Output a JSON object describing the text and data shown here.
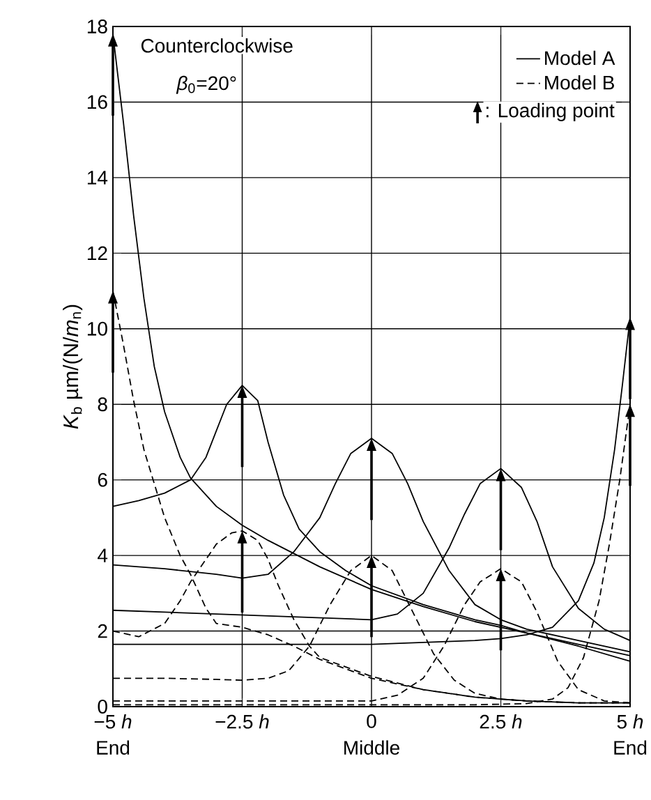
{
  "chart_data": {
    "type": "line",
    "xlim": [
      -5,
      5
    ],
    "ylim": [
      0,
      18
    ],
    "xticks": [
      {
        "value": -5,
        "label": "−5 *h*"
      },
      {
        "value": -2.5,
        "label": "−2.5 *h*"
      },
      0,
      {
        "value": 2.5,
        "label": "2.5 *h*"
      },
      {
        "value": 5,
        "label": "5 *h*"
      }
    ],
    "yticks": [
      0,
      2,
      4,
      6,
      8,
      10,
      12,
      14,
      16,
      18
    ],
    "ylabel": "*K*$_{b}$ µm/(N/*m*$_{n}$)",
    "grid": true,
    "legend": "top right",
    "annotations": [
      "Counterclockwise",
      "*β*$_{0}$=20°",
      ": Loading point",
      "End",
      "Middle",
      "End"
    ],
    "series": [
      {
        "name": "Model A",
        "color": "#000000",
        "line_style": "solid",
        "x": [
          -5,
          -4.8,
          -4.6,
          -4.4,
          -4.2,
          -4,
          -3.7,
          -3.5,
          -3,
          -2.5,
          -2,
          -1,
          0,
          1,
          2,
          2.5,
          3,
          4,
          5
        ],
        "values": [
          17.8,
          15.5,
          13,
          10.8,
          9,
          7.8,
          6.6,
          6.05,
          5.3,
          4.8,
          4.4,
          3.7,
          3.1,
          2.65,
          2.25,
          2.1,
          1.95,
          1.6,
          1.2
        ]
      },
      {
        "color": "#000000",
        "line_style": "solid",
        "x": [
          -5,
          -4.5,
          -4,
          -3.5,
          -3.2,
          -3,
          -2.8,
          -2.5,
          -2.2,
          -2,
          -1.7,
          -1.4,
          -1,
          -0.5,
          0,
          1,
          2,
          2.5,
          3,
          4,
          5
        ],
        "values": [
          5.3,
          5.45,
          5.65,
          6.0,
          6.6,
          7.3,
          8.0,
          8.5,
          8.1,
          7.0,
          5.6,
          4.7,
          4.1,
          3.6,
          3.2,
          2.7,
          2.3,
          2.15,
          1.95,
          1.65,
          1.35
        ]
      },
      {
        "color": "#000000",
        "line_style": "solid",
        "x": [
          -5,
          -4,
          -3,
          -2.5,
          -2,
          -1.5,
          -1,
          -0.7,
          -0.4,
          0,
          0.4,
          0.7,
          1,
          1.5,
          2,
          2.5,
          3,
          4,
          5
        ],
        "values": [
          3.75,
          3.65,
          3.5,
          3.4,
          3.5,
          4.1,
          5.0,
          5.9,
          6.7,
          7.1,
          6.7,
          5.9,
          4.9,
          3.6,
          2.7,
          2.3,
          2.05,
          1.75,
          1.45
        ]
      },
      {
        "color": "#000000",
        "line_style": "solid",
        "x": [
          -5,
          -4,
          -3,
          -2,
          -1,
          0,
          0.5,
          1,
          1.5,
          1.8,
          2.1,
          2.5,
          2.9,
          3.2,
          3.5,
          4,
          4.5,
          5
        ],
        "values": [
          2.55,
          2.5,
          2.45,
          2.4,
          2.35,
          2.3,
          2.45,
          3.0,
          4.2,
          5.1,
          5.9,
          6.3,
          5.8,
          4.9,
          3.7,
          2.6,
          2.05,
          1.75
        ]
      },
      {
        "color": "#000000",
        "line_style": "solid",
        "x": [
          -5,
          -3,
          -1,
          0,
          1,
          2,
          2.5,
          3,
          3.5,
          4,
          4.3,
          4.5,
          4.7,
          4.85,
          5
        ],
        "values": [
          1.65,
          1.65,
          1.65,
          1.65,
          1.7,
          1.75,
          1.8,
          1.9,
          2.1,
          2.8,
          3.8,
          5.0,
          6.8,
          8.5,
          10.3
        ]
      },
      {
        "name": "Model B",
        "color": "#000000",
        "line_style": "dashed",
        "x": [
          -5,
          -4.8,
          -4.6,
          -4.4,
          -4.2,
          -4,
          -3.7,
          -3.5,
          -3.2,
          -3,
          -2.5,
          -2,
          -1.5,
          -1,
          0,
          1,
          2,
          2.5,
          3,
          4,
          5
        ],
        "values": [
          11.0,
          9.6,
          8.1,
          6.8,
          5.9,
          5.0,
          4.0,
          3.5,
          2.6,
          2.2,
          2.1,
          1.9,
          1.6,
          1.25,
          0.75,
          0.45,
          0.25,
          0.2,
          0.15,
          0.1,
          0.1
        ]
      },
      {
        "color": "#000000",
        "line_style": "dashed",
        "x": [
          -5,
          -4.5,
          -4,
          -3.7,
          -3.5,
          -3.2,
          -3,
          -2.7,
          -2.5,
          -2.2,
          -2,
          -1.8,
          -1.5,
          -1.2,
          -1,
          0,
          1,
          2,
          2.5,
          3,
          4,
          5
        ],
        "values": [
          2.0,
          1.85,
          2.2,
          2.8,
          3.3,
          3.9,
          4.3,
          4.6,
          4.65,
          4.4,
          3.9,
          3.2,
          2.3,
          1.6,
          1.3,
          0.8,
          0.45,
          0.25,
          0.2,
          0.15,
          0.1,
          0.1
        ]
      },
      {
        "color": "#000000",
        "line_style": "dashed",
        "x": [
          -5,
          -4,
          -3,
          -2.5,
          -2,
          -1.6,
          -1.2,
          -0.8,
          -0.4,
          0,
          0.4,
          0.8,
          1.2,
          1.6,
          2,
          2.5,
          3,
          4,
          5
        ],
        "values": [
          0.75,
          0.75,
          0.72,
          0.7,
          0.75,
          0.95,
          1.6,
          2.7,
          3.6,
          4.0,
          3.6,
          2.5,
          1.4,
          0.7,
          0.35,
          0.2,
          0.15,
          0.1,
          0.1
        ]
      },
      {
        "color": "#000000",
        "line_style": "dashed",
        "x": [
          -5,
          -3,
          -1,
          0,
          0.5,
          1,
          1.4,
          1.8,
          2.1,
          2.5,
          2.9,
          3.2,
          3.6,
          4,
          4.5,
          5
        ],
        "values": [
          0.15,
          0.15,
          0.15,
          0.15,
          0.3,
          0.75,
          1.6,
          2.7,
          3.3,
          3.65,
          3.3,
          2.5,
          1.2,
          0.45,
          0.15,
          0.1
        ]
      },
      {
        "color": "#000000",
        "line_style": "dashed",
        "x": [
          -5,
          -2,
          0,
          2,
          3,
          3.5,
          3.8,
          4.1,
          4.4,
          4.6,
          4.8,
          5
        ],
        "values": [
          0.05,
          0.05,
          0.05,
          0.05,
          0.08,
          0.2,
          0.5,
          1.3,
          2.8,
          4.3,
          6.0,
          8.0
        ]
      }
    ]
  }
}
